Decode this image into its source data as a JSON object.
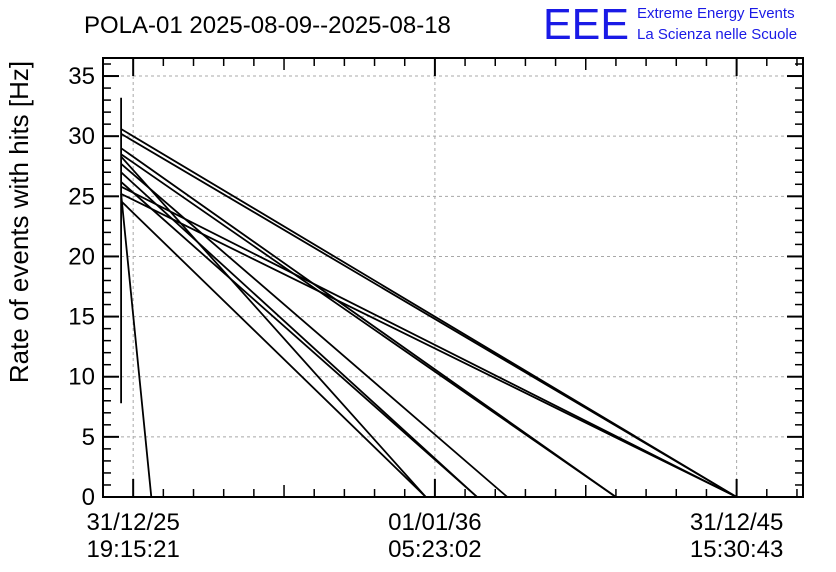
{
  "chart_data": {
    "type": "line",
    "title": "POLA-01 2025-08-09--2025-08-18",
    "xlabel": "",
    "ylabel": "Rate of events with hits [Hz]",
    "ylim": [
      0,
      36.5
    ],
    "xlim": [
      -0.1,
      2.22
    ],
    "grid": true,
    "y_ticks": [
      0,
      5,
      10,
      15,
      20,
      25,
      30,
      35
    ],
    "x_ticks": [
      {
        "value": 0,
        "date": "31/12/25",
        "time": "19:15:21"
      },
      {
        "value": 1,
        "date": "01/01/36",
        "time": "05:23:02"
      },
      {
        "value": 2,
        "date": "31/12/45",
        "time": "15:30:43"
      }
    ],
    "series": [
      {
        "x": [
          -0.04,
          -0.04
        ],
        "y": [
          7.8,
          33.2
        ]
      },
      {
        "x": [
          -0.04,
          2.0
        ],
        "y": [
          30.6,
          0
        ]
      },
      {
        "x": [
          -0.04,
          2.0
        ],
        "y": [
          30.2,
          0
        ]
      },
      {
        "x": [
          -0.04,
          1.6
        ],
        "y": [
          29.0,
          0
        ]
      },
      {
        "x": [
          -0.04,
          1.6
        ],
        "y": [
          28.5,
          0
        ]
      },
      {
        "x": [
          -0.04,
          0.97
        ],
        "y": [
          28.3,
          0
        ]
      },
      {
        "x": [
          -0.04,
          1.24
        ],
        "y": [
          27.7,
          0
        ]
      },
      {
        "x": [
          -0.04,
          1.14
        ],
        "y": [
          27.0,
          0
        ]
      },
      {
        "x": [
          -0.04,
          1.14
        ],
        "y": [
          26.2,
          0
        ]
      },
      {
        "x": [
          -0.04,
          2.0
        ],
        "y": [
          25.8,
          0
        ]
      },
      {
        "x": [
          -0.04,
          0.97
        ],
        "y": [
          24.6,
          0
        ]
      },
      {
        "x": [
          -0.04,
          0.06
        ],
        "y": [
          25.2,
          0
        ]
      },
      {
        "x": [
          -0.04,
          2.0
        ],
        "y": [
          25.2,
          0
        ]
      }
    ]
  },
  "logo": {
    "letters": "EEE",
    "line1": "Extreme Energy Events",
    "line2": "La Scienza nelle Scuole"
  }
}
